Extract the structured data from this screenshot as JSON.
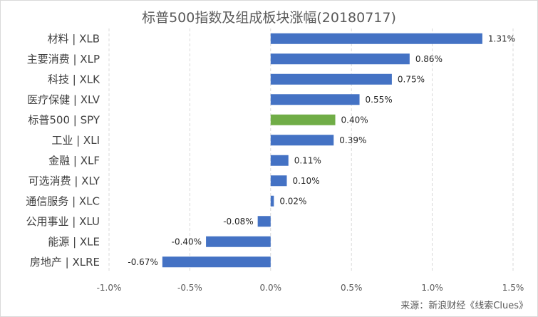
{
  "source": "来源：新浪财经《线索Clues》",
  "chart_data": {
    "type": "bar",
    "orientation": "horizontal",
    "title": "标普500指数及组成板块涨幅(20180717)",
    "xlabel": "",
    "ylabel": "",
    "xlim": [
      -0.01,
      0.015
    ],
    "xticks": [
      -0.01,
      -0.005,
      0,
      0.005,
      0.01,
      0.015
    ],
    "xtick_labels": [
      "-1.0%",
      "-0.5%",
      "0.0%",
      "0.5%",
      "1.0%",
      "1.5%"
    ],
    "grid": "vertical dashed",
    "legend": "none",
    "colors": {
      "default": "#4472c4",
      "highlight": "#70ad47"
    },
    "highlight_category": "标普500 | SPY",
    "categories": [
      "材料 | XLB",
      "主要消费 | XLP",
      "科技 | XLK",
      "医疗保健 | XLV",
      "标普500 | SPY",
      "工业 | XLI",
      "金融 | XLF",
      "可选消费 | XLY",
      "通信服务 | XLC",
      "公用事业 | XLU",
      "能源 | XLE",
      "房地产 | XLRE"
    ],
    "values": [
      0.0131,
      0.0086,
      0.0075,
      0.0055,
      0.004,
      0.0039,
      0.0011,
      0.001,
      0.0002,
      -0.0008,
      -0.004,
      -0.0067
    ],
    "value_labels": [
      "1.31%",
      "0.86%",
      "0.75%",
      "0.55%",
      "0.40%",
      "0.39%",
      "0.11%",
      "0.10%",
      "0.02%",
      "-0.08%",
      "-0.40%",
      "-0.67%"
    ]
  }
}
